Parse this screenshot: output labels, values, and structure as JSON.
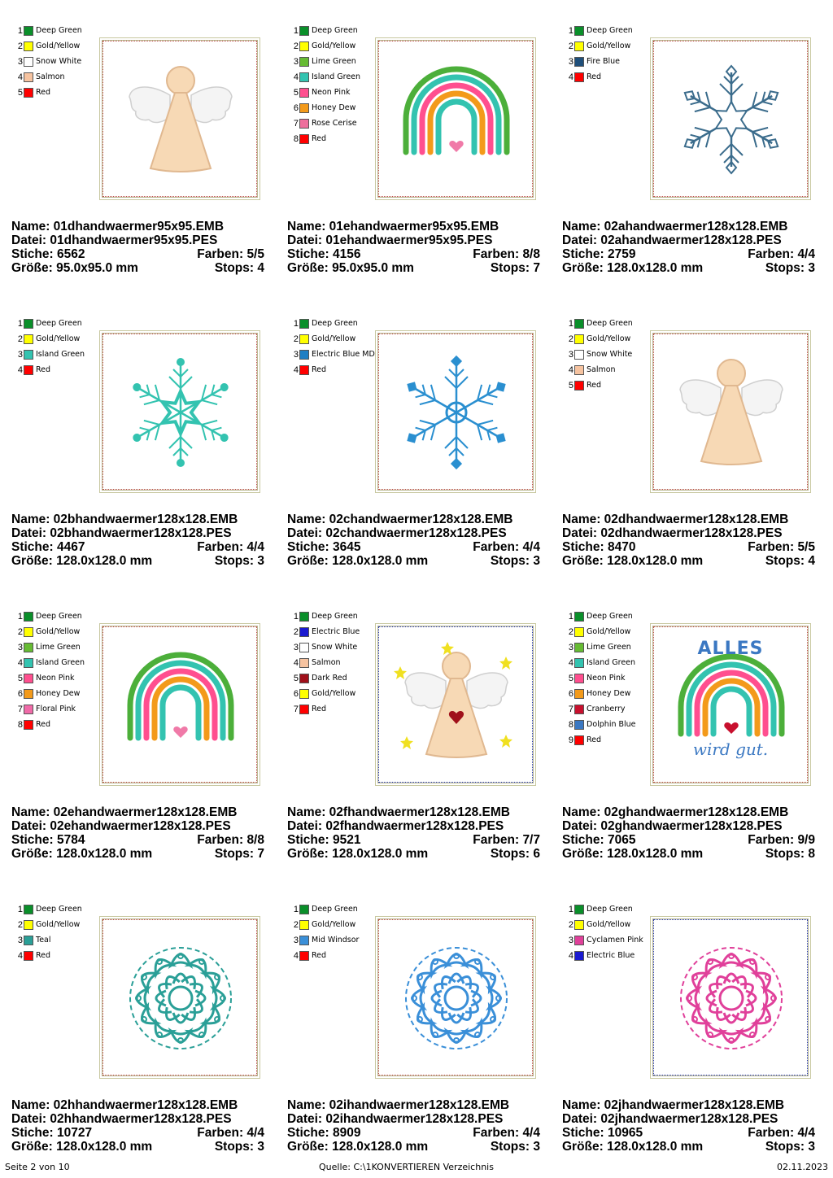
{
  "cards": [
    {
      "colors": [
        {
          "n": "1",
          "name": "Deep Green",
          "hex": "#0a8f2a"
        },
        {
          "n": "2",
          "name": "Gold/Yellow",
          "hex": "#ffff00"
        },
        {
          "n": "3",
          "name": "Snow White",
          "hex": "#ffffff"
        },
        {
          "n": "4",
          "name": "Salmon",
          "hex": "#f6c3a0"
        },
        {
          "n": "5",
          "name": "Red",
          "hex": "#ff0000"
        }
      ],
      "motif": "angel",
      "name_label": "Name: 01dhandwaermer95x95.EMB",
      "file_label": "Datei: 01dhandwaermer95x95.PES",
      "stitches": "Stiche: 6562",
      "colors_count": "Farben: 5/5",
      "size": "Größe: 95.0x95.0 mm",
      "stops": "Stops: 4"
    },
    {
      "colors": [
        {
          "n": "1",
          "name": "Deep Green",
          "hex": "#0a8f2a"
        },
        {
          "n": "2",
          "name": "Gold/Yellow",
          "hex": "#ffff00"
        },
        {
          "n": "3",
          "name": "Lime Green",
          "hex": "#66bb33"
        },
        {
          "n": "4",
          "name": "Island Green",
          "hex": "#33c3b0"
        },
        {
          "n": "5",
          "name": "Neon Pink",
          "hex": "#ff4f8f"
        },
        {
          "n": "6",
          "name": "Honey Dew",
          "hex": "#f39a1a"
        },
        {
          "n": "7",
          "name": "Rose Cerise",
          "hex": "#ee6f9c"
        },
        {
          "n": "8",
          "name": "Red",
          "hex": "#ff0000"
        }
      ],
      "motif": "rainbow",
      "name_label": "Name: 01ehandwaermer95x95.EMB",
      "file_label": "Datei: 01ehandwaermer95x95.PES",
      "stitches": "Stiche: 4156",
      "colors_count": "Farben: 8/8",
      "size": "Größe: 95.0x95.0 mm",
      "stops": "Stops: 7"
    },
    {
      "colors": [
        {
          "n": "1",
          "name": "Deep Green",
          "hex": "#0a8f2a"
        },
        {
          "n": "2",
          "name": "Gold/Yellow",
          "hex": "#ffff00"
        },
        {
          "n": "3",
          "name": "Fire Blue",
          "hex": "#1f4f7a"
        },
        {
          "n": "4",
          "name": "Red",
          "hex": "#ff0000"
        }
      ],
      "motif": "snowflake-outline",
      "name_label": "Name: 02ahandwaermer128x128.EMB",
      "file_label": "Datei: 02ahandwaermer128x128.PES",
      "stitches": "Stiche: 2759",
      "colors_count": "Farben: 4/4",
      "size": "Größe: 128.0x128.0 mm",
      "stops": "Stops: 3"
    },
    {
      "colors": [
        {
          "n": "1",
          "name": "Deep Green",
          "hex": "#0a8f2a"
        },
        {
          "n": "2",
          "name": "Gold/Yellow",
          "hex": "#ffff00"
        },
        {
          "n": "3",
          "name": "Island Green",
          "hex": "#33c3b0"
        },
        {
          "n": "4",
          "name": "Red",
          "hex": "#ff0000"
        }
      ],
      "motif": "snowflake-teal",
      "name_label": "Name: 02bhandwaermer128x128.EMB",
      "file_label": "Datei: 02bhandwaermer128x128.PES",
      "stitches": "Stiche: 4467",
      "colors_count": "Farben: 4/4",
      "size": "Größe: 128.0x128.0 mm",
      "stops": "Stops: 3"
    },
    {
      "colors": [
        {
          "n": "1",
          "name": "Deep Green",
          "hex": "#0a8f2a"
        },
        {
          "n": "2",
          "name": "Gold/Yellow",
          "hex": "#ffff00"
        },
        {
          "n": "3",
          "name": "Electric Blue MD",
          "hex": "#1f7fc4"
        },
        {
          "n": "4",
          "name": "Red",
          "hex": "#ff0000"
        }
      ],
      "motif": "snowflake-blue",
      "name_label": "Name: 02chandwaermer128x128.EMB",
      "file_label": "Datei: 02chandwaermer128x128.PES",
      "stitches": "Stiche: 3645",
      "colors_count": "Farben: 4/4",
      "size": "Größe: 128.0x128.0 mm",
      "stops": "Stops: 3"
    },
    {
      "colors": [
        {
          "n": "1",
          "name": "Deep Green",
          "hex": "#0a8f2a"
        },
        {
          "n": "2",
          "name": "Gold/Yellow",
          "hex": "#ffff00"
        },
        {
          "n": "3",
          "name": "Snow White",
          "hex": "#ffffff"
        },
        {
          "n": "4",
          "name": "Salmon",
          "hex": "#f6c3a0"
        },
        {
          "n": "5",
          "name": "Red",
          "hex": "#ff0000"
        }
      ],
      "motif": "angel",
      "name_label": "Name: 02dhandwaermer128x128.EMB",
      "file_label": "Datei: 02dhandwaermer128x128.PES",
      "stitches": "Stiche: 8470",
      "colors_count": "Farben: 5/5",
      "size": "Größe: 128.0x128.0 mm",
      "stops": "Stops: 4"
    },
    {
      "colors": [
        {
          "n": "1",
          "name": "Deep Green",
          "hex": "#0a8f2a"
        },
        {
          "n": "2",
          "name": "Gold/Yellow",
          "hex": "#ffff00"
        },
        {
          "n": "3",
          "name": "Lime Green",
          "hex": "#66bb33"
        },
        {
          "n": "4",
          "name": "Island Green",
          "hex": "#33c3b0"
        },
        {
          "n": "5",
          "name": "Neon Pink",
          "hex": "#ff4f8f"
        },
        {
          "n": "6",
          "name": "Honey Dew",
          "hex": "#f39a1a"
        },
        {
          "n": "7",
          "name": "Floral Pink",
          "hex": "#f06aa8"
        },
        {
          "n": "8",
          "name": "Red",
          "hex": "#ff0000"
        }
      ],
      "motif": "rainbow",
      "name_label": "Name: 02ehandwaermer128x128.EMB",
      "file_label": "Datei: 02ehandwaermer128x128.PES",
      "stitches": "Stiche: 5784",
      "colors_count": "Farben: 8/8",
      "size": "Größe: 128.0x128.0 mm",
      "stops": "Stops: 7"
    },
    {
      "colors": [
        {
          "n": "1",
          "name": "Deep Green",
          "hex": "#0a8f2a"
        },
        {
          "n": "2",
          "name": "Electric Blue",
          "hex": "#1a1ad0"
        },
        {
          "n": "3",
          "name": "Snow White",
          "hex": "#ffffff"
        },
        {
          "n": "4",
          "name": "Salmon",
          "hex": "#f6c3a0"
        },
        {
          "n": "5",
          "name": "Dark Red",
          "hex": "#a0101a"
        },
        {
          "n": "6",
          "name": "Gold/Yellow",
          "hex": "#ffff00"
        },
        {
          "n": "7",
          "name": "Red",
          "hex": "#ff0000"
        }
      ],
      "motif": "angel-stars",
      "name_label": "Name: 02fhandwaermer128x128.EMB",
      "file_label": "Datei: 02fhandwaermer128x128.PES",
      "stitches": "Stiche: 9521",
      "colors_count": "Farben: 7/7",
      "size": "Größe: 128.0x128.0 mm",
      "stops": "Stops: 6"
    },
    {
      "colors": [
        {
          "n": "1",
          "name": "Deep Green",
          "hex": "#0a8f2a"
        },
        {
          "n": "2",
          "name": "Gold/Yellow",
          "hex": "#ffff00"
        },
        {
          "n": "3",
          "name": "Lime Green",
          "hex": "#66bb33"
        },
        {
          "n": "4",
          "name": "Island Green",
          "hex": "#33c3b0"
        },
        {
          "n": "5",
          "name": "Neon Pink",
          "hex": "#ff4f8f"
        },
        {
          "n": "6",
          "name": "Honey Dew",
          "hex": "#f39a1a"
        },
        {
          "n": "7",
          "name": "Cranberry",
          "hex": "#c8102e"
        },
        {
          "n": "8",
          "name": "Dolphin Blue",
          "hex": "#3b78c2"
        },
        {
          "n": "9",
          "name": "Red",
          "hex": "#ff0000"
        }
      ],
      "motif": "rainbow-text",
      "motif_text_top": "ALLES",
      "motif_text_bottom": "wird gut.",
      "name_label": "Name: 02ghandwaermer128x128.EMB",
      "file_label": "Datei: 02ghandwaermer128x128.PES",
      "stitches": "Stiche: 7065",
      "colors_count": "Farben: 9/9",
      "size": "Größe: 128.0x128.0 mm",
      "stops": "Stops: 8"
    },
    {
      "colors": [
        {
          "n": "1",
          "name": "Deep Green",
          "hex": "#0a8f2a"
        },
        {
          "n": "2",
          "name": "Gold/Yellow",
          "hex": "#ffff00"
        },
        {
          "n": "3",
          "name": "Teal",
          "hex": "#2a9f97"
        },
        {
          "n": "4",
          "name": "Red",
          "hex": "#ff0000"
        }
      ],
      "motif": "mandala-teal",
      "name_label": "Name: 02hhandwaermer128x128.EMB",
      "file_label": "Datei: 02hhandwaermer128x128.PES",
      "stitches": "Stiche: 10727",
      "colors_count": "Farben: 4/4",
      "size": "Größe: 128.0x128.0 mm",
      "stops": "Stops: 3"
    },
    {
      "colors": [
        {
          "n": "1",
          "name": "Deep Green",
          "hex": "#0a8f2a"
        },
        {
          "n": "2",
          "name": "Gold/Yellow",
          "hex": "#ffff00"
        },
        {
          "n": "3",
          "name": "Mid Windsor",
          "hex": "#3a8fd8"
        },
        {
          "n": "4",
          "name": "Red",
          "hex": "#ff0000"
        }
      ],
      "motif": "mandala-blue",
      "name_label": "Name: 02ihandwaermer128x128.EMB",
      "file_label": "Datei: 02ihandwaermer128x128.PES",
      "stitches": "Stiche: 8909",
      "colors_count": "Farben: 4/4",
      "size": "Größe: 128.0x128.0 mm",
      "stops": "Stops: 3"
    },
    {
      "colors": [
        {
          "n": "1",
          "name": "Deep Green",
          "hex": "#0a8f2a"
        },
        {
          "n": "2",
          "name": "Gold/Yellow",
          "hex": "#ffff00"
        },
        {
          "n": "3",
          "name": "Cyclamen Pink",
          "hex": "#e0409a"
        },
        {
          "n": "4",
          "name": "Electric Blue",
          "hex": "#1a1ad0"
        }
      ],
      "motif": "mandala-pink",
      "name_label": "Name: 02jhandwaermer128x128.EMB",
      "file_label": "Datei: 02jhandwaermer128x128.PES",
      "stitches": "Stiche: 10965",
      "colors_count": "Farben: 4/4",
      "size": "Größe: 128.0x128.0 mm",
      "stops": "Stops: 3"
    }
  ],
  "footer": {
    "page": "Seite 2 von 10",
    "source": "Quelle: C:\\1KONVERTIEREN Verzeichnis",
    "date": "02.11.2023"
  }
}
